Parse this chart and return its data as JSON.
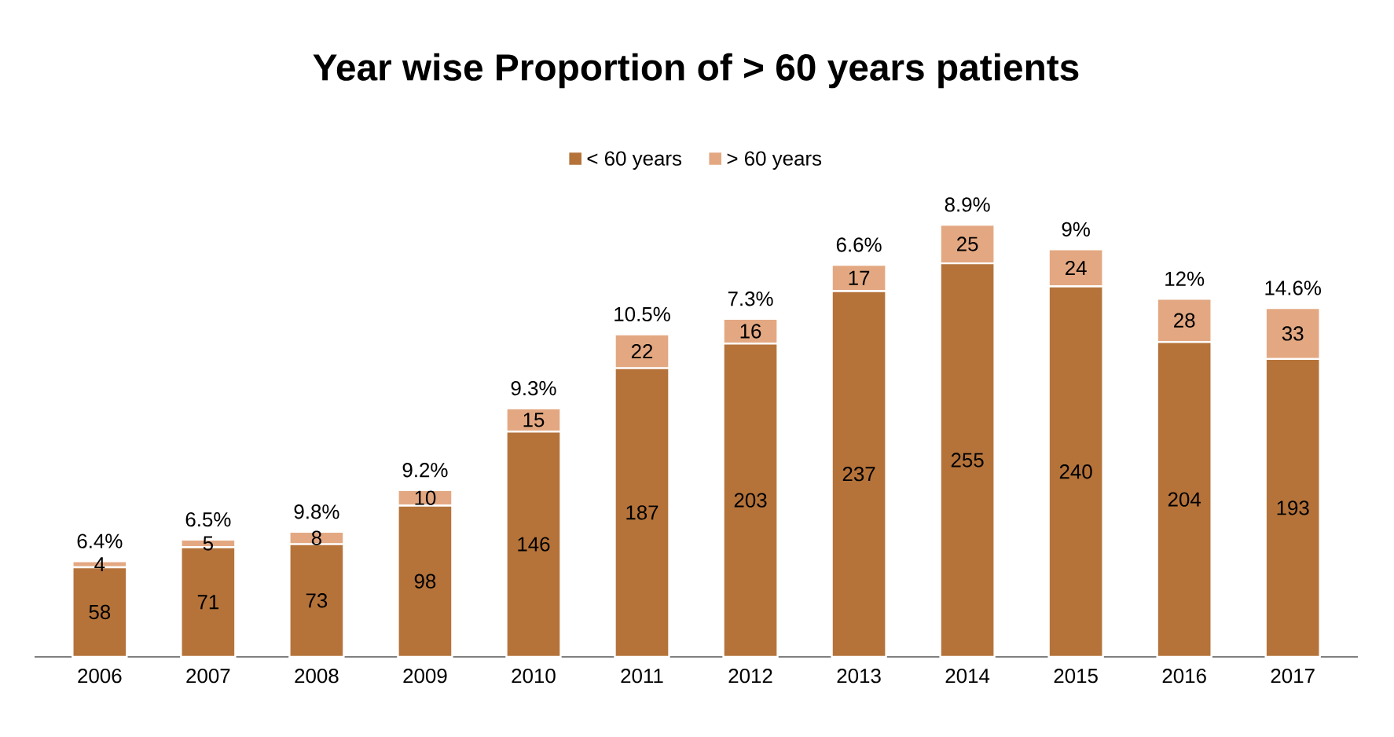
{
  "chart_data": {
    "type": "bar",
    "title": "Year wise Proportion of > 60 years patients",
    "categories": [
      "2006",
      "2007",
      "2008",
      "2009",
      "2010",
      "2011",
      "2012",
      "2013",
      "2014",
      "2015",
      "2016",
      "2017"
    ],
    "series": [
      {
        "name": "< 60 years",
        "color": "#b5733a",
        "values": [
          58,
          71,
          73,
          98,
          146,
          187,
          203,
          237,
          255,
          240,
          204,
          193
        ]
      },
      {
        "name": "> 60 years",
        "color": "#e3a882",
        "values": [
          4,
          5,
          8,
          10,
          15,
          22,
          16,
          17,
          25,
          24,
          28,
          33
        ]
      }
    ],
    "stacked": true,
    "data_labels": true,
    "annotations": [
      "6.4%",
      "6.5%",
      "9.8%",
      "9.2%",
      "9.3%",
      "10.5%",
      "7.3%",
      "6.6%",
      "8.9%",
      "9%",
      "12%",
      "14.6%"
    ],
    "legend": "top"
  }
}
